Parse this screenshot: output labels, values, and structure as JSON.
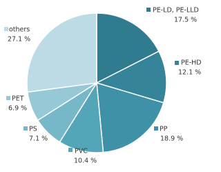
{
  "chart_data": {
    "type": "pie",
    "categories": [
      "PE-LD, PE-LLD",
      "PE-HD",
      "PP",
      "PVC",
      "PS",
      "PET",
      "others"
    ],
    "values": [
      17.5,
      12.1,
      18.9,
      10.4,
      7.1,
      6.9,
      27.1
    ],
    "value_labels": [
      "17.5 %",
      "12.1 %",
      "18.9 %",
      "10.4 %",
      "7.1 %",
      "6.9 %",
      "27.1 %"
    ],
    "colors": [
      "#2f7b8f",
      "#35849a",
      "#3f91a7",
      "#55a5b9",
      "#76b7c8",
      "#97c8d6",
      "#bcdbe4"
    ]
  }
}
